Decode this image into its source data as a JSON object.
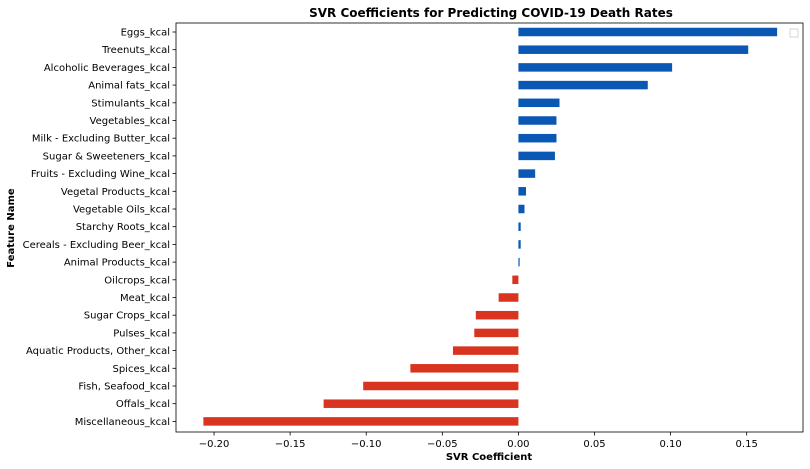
{
  "chart_data": {
    "type": "bar",
    "orientation": "horizontal",
    "title": "SVR Coefficients for Predicting COVID-19 Death Rates",
    "xlabel": "SVR Coefficient",
    "ylabel": "Feature Name",
    "xlim": [
      -0.225,
      0.187
    ],
    "xticks": [
      -0.2,
      -0.15,
      -0.1,
      -0.05,
      0.0,
      0.05,
      0.1,
      0.15
    ],
    "xtick_labels": [
      "−0.20",
      "−0.15",
      "−0.10",
      "−0.05",
      "0.00",
      "0.05",
      "0.10",
      "0.15"
    ],
    "grid": false,
    "legend": "top-right (empty)",
    "colors": {
      "positive": "#0a58b4",
      "negative": "#d9341f"
    },
    "categories": [
      "Eggs_kcal",
      "Treenuts_kcal",
      "Alcoholic Beverages_kcal",
      "Animal fats_kcal",
      "Stimulants_kcal",
      "Vegetables_kcal",
      "Milk - Excluding Butter_kcal",
      "Sugar & Sweeteners_kcal",
      "Fruits - Excluding Wine_kcal",
      "Vegetal Products_kcal",
      "Vegetable Oils_kcal",
      "Starchy Roots_kcal",
      "Cereals - Excluding Beer_kcal",
      "Animal Products_kcal",
      "Oilcrops_kcal",
      "Meat_kcal",
      "Sugar Crops_kcal",
      "Pulses_kcal",
      "Aquatic Products, Other_kcal",
      "Spices_kcal",
      "Fish, Seafood_kcal",
      "Offals_kcal",
      "Miscellaneous_kcal"
    ],
    "values": [
      0.17,
      0.151,
      0.101,
      0.085,
      0.027,
      0.025,
      0.025,
      0.024,
      0.011,
      0.005,
      0.004,
      0.0015,
      0.0015,
      0.0008,
      -0.004,
      -0.013,
      -0.028,
      -0.029,
      -0.043,
      -0.071,
      -0.102,
      -0.128,
      -0.207
    ]
  }
}
